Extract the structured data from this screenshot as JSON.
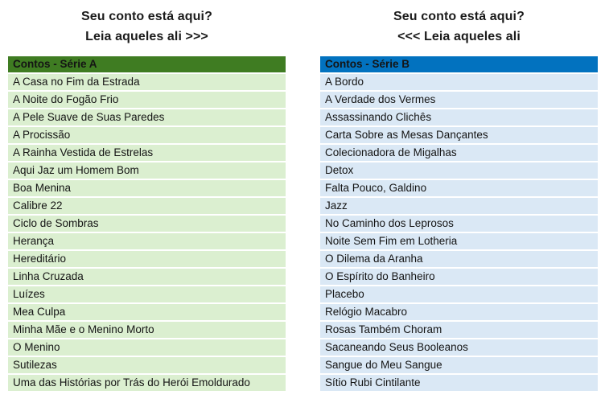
{
  "page": {
    "background": "#ffffff",
    "title_text_color": "#1b1b1b"
  },
  "left_panel": {
    "title_line1": "Seu conto está aqui?",
    "title_line2": "Leia aqueles ali >>>",
    "table_header": "Contos - Série A",
    "theme": {
      "header_bg": "#3F7C22",
      "header_text": "#FFFFFF",
      "row_bg": "#DBEFD0"
    },
    "items": [
      "A Casa no Fim da Estrada",
      "A Noite do Fogão Frio",
      "A Pele Suave de Suas Paredes",
      "A Procissão",
      "A Rainha Vestida de Estrelas",
      "Aqui Jaz um Homem Bom",
      "Boa Menina",
      "Calibre 22",
      "Ciclo de Sombras",
      "Herança",
      "Hereditário",
      "Linha Cruzada",
      "Luízes",
      "Mea Culpa",
      "Minha Mãe e o Menino Morto",
      "O Menino",
      "Sutilezas",
      "Uma das Histórias por Trás do Herói Emoldurado"
    ]
  },
  "right_panel": {
    "title_line1": "Seu conto está aqui?",
    "title_line2": "<<< Leia aqueles ali",
    "table_header": "Contos - Série B",
    "theme": {
      "header_bg": "#0272BF",
      "header_text": "#FFFFFF",
      "row_bg": "#DAE8F5"
    },
    "items": [
      "A Bordo",
      "A Verdade dos Vermes",
      "Assassinando Clichês",
      "Carta Sobre as Mesas Dançantes",
      "Colecionadora de Migalhas",
      "Detox",
      "Falta Pouco, Galdino",
      "Jazz",
      "No Caminho dos Leprosos",
      "Noite Sem Fim em Lotheria",
      "O Dilema da Aranha",
      "O Espírito do Banheiro",
      "Placebo",
      "Relógio Macabro",
      "Rosas Também Choram",
      "Sacaneando Seus Booleanos",
      "Sangue do Meu Sangue",
      "Sítio Rubi Cintilante"
    ]
  }
}
